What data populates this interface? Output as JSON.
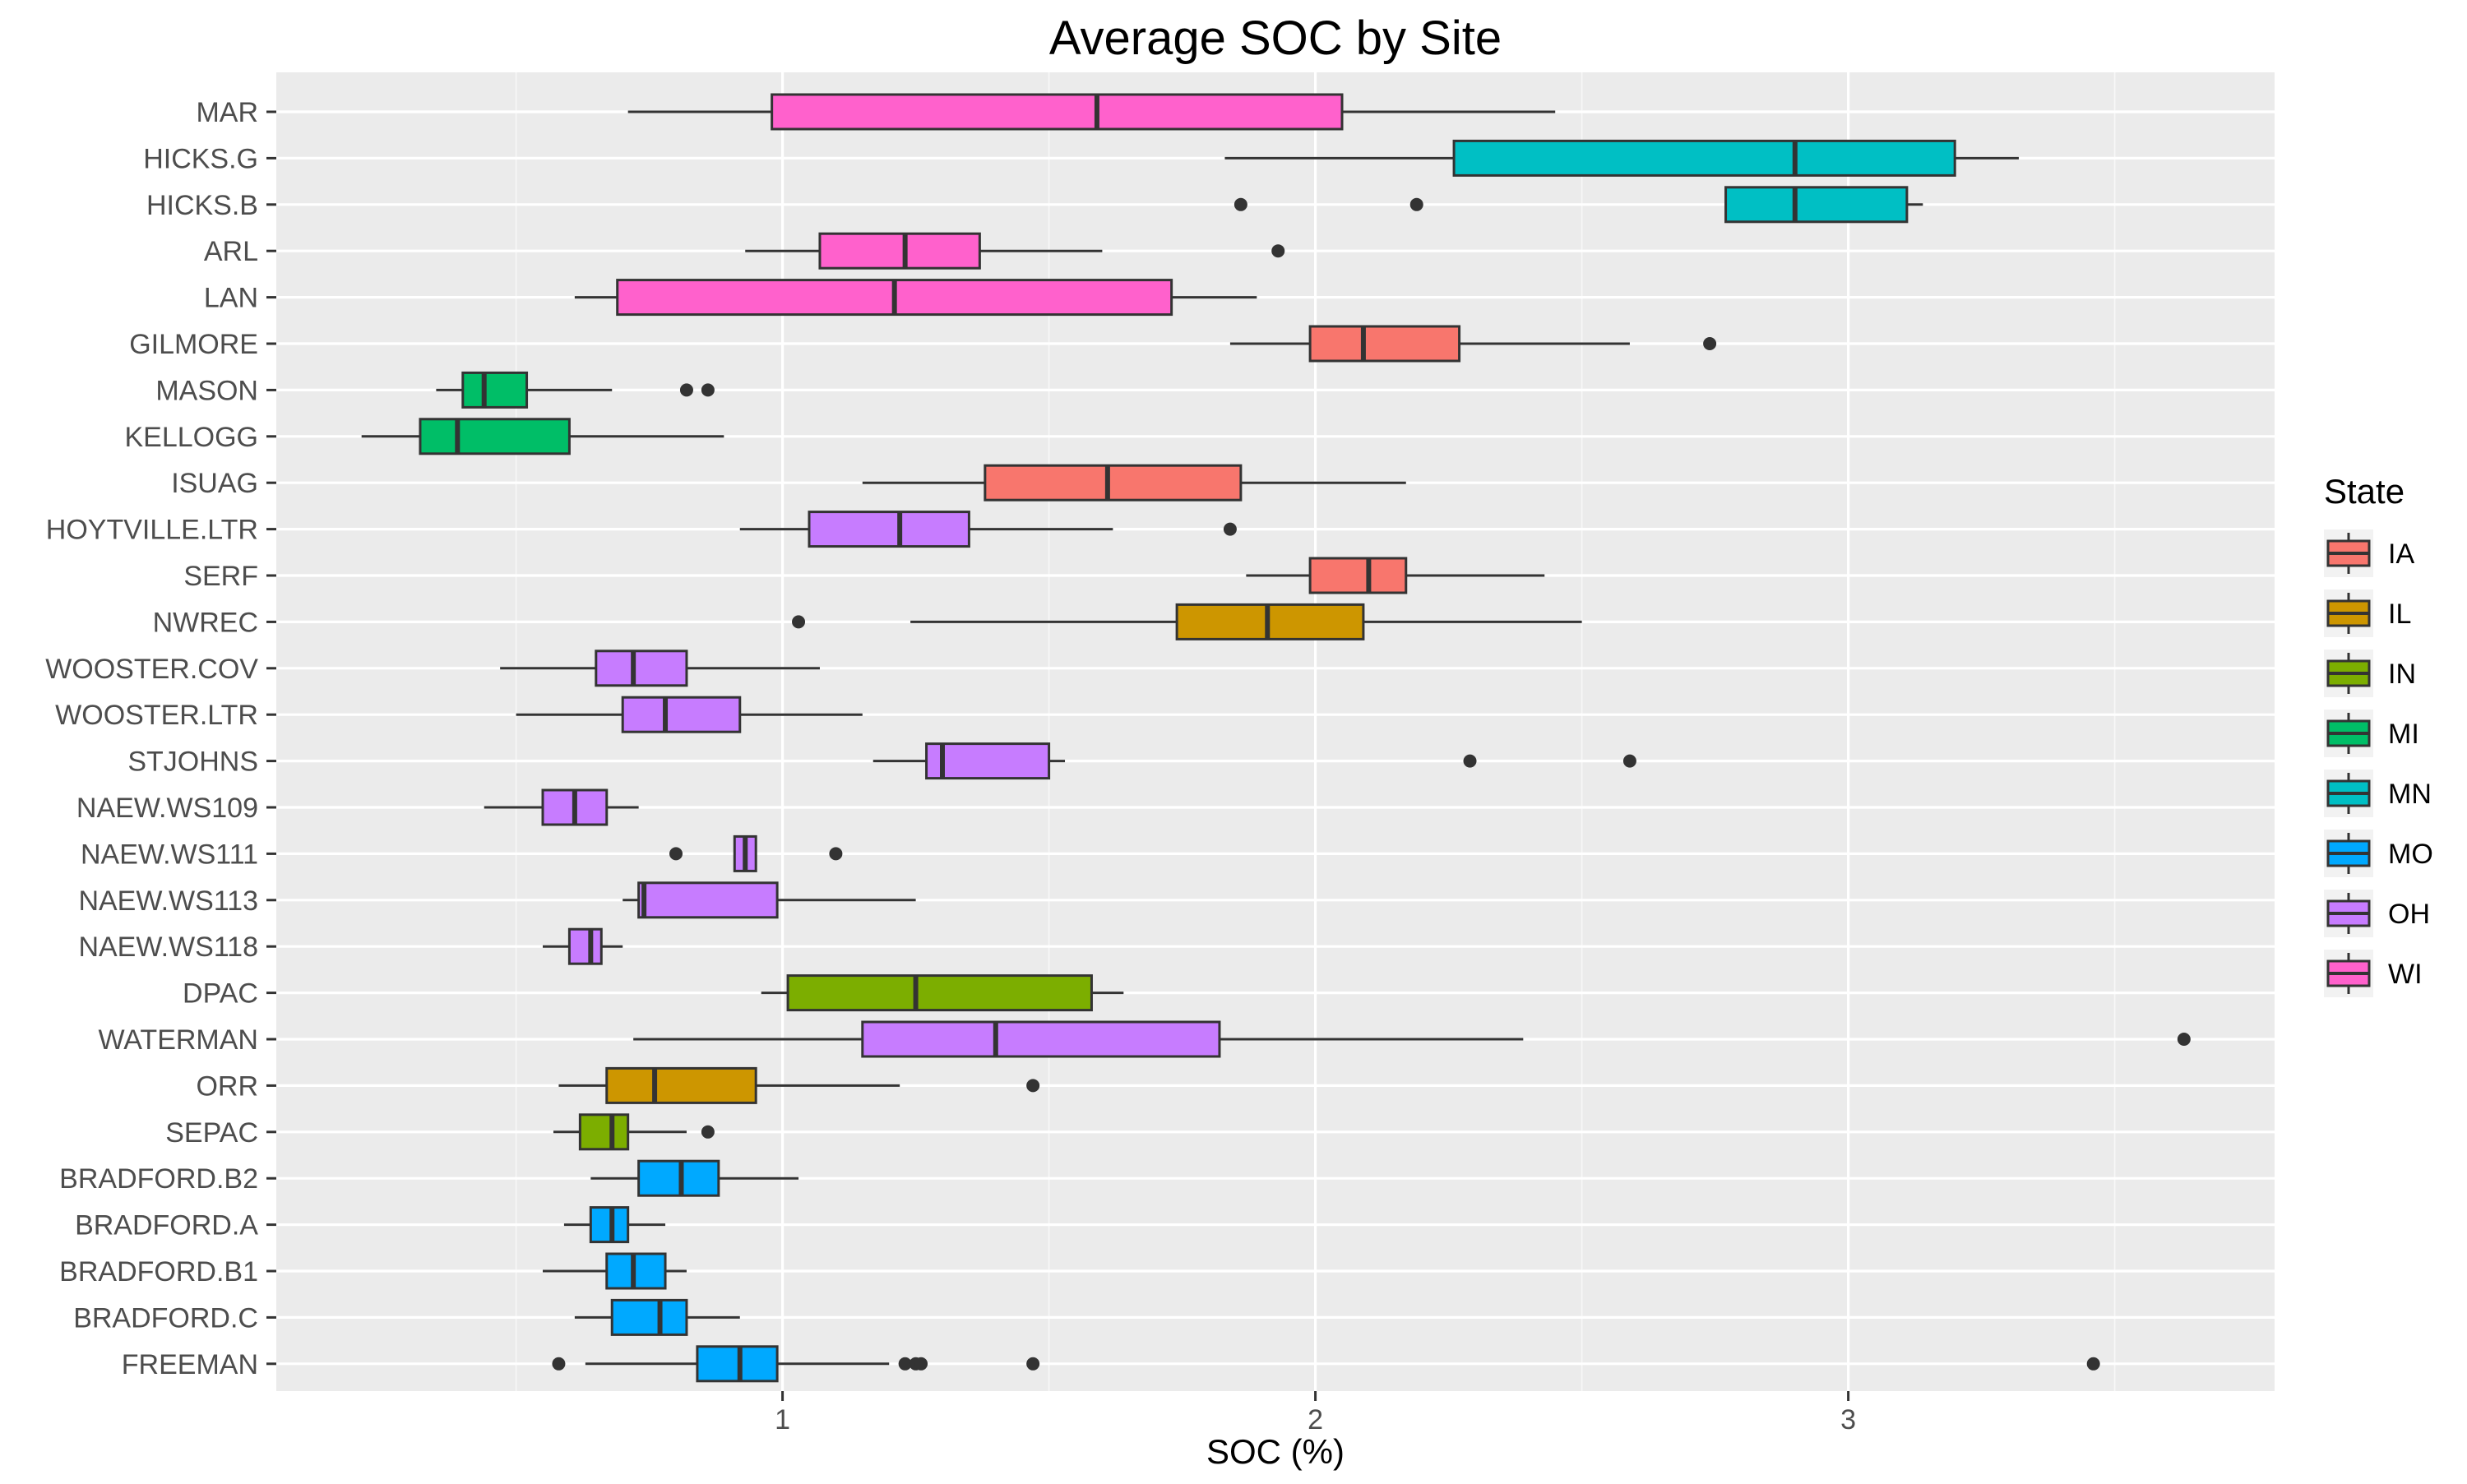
{
  "chart_data": {
    "type": "boxplot",
    "title": "Average SOC by Site",
    "xlabel": "SOC (%)",
    "ylabel": "",
    "xlim": [
      0.05,
      3.8
    ],
    "x_ticks": [
      1,
      2,
      3
    ],
    "grid": true,
    "legend": {
      "title": "State",
      "position": "right",
      "entries": [
        {
          "name": "IA",
          "color": "#F8766D"
        },
        {
          "name": "IL",
          "color": "#CD9600"
        },
        {
          "name": "IN",
          "color": "#7CAE00"
        },
        {
          "name": "MI",
          "color": "#00BE67"
        },
        {
          "name": "MN",
          "color": "#00BFC4"
        },
        {
          "name": "MO",
          "color": "#00A9FF"
        },
        {
          "name": "OH",
          "color": "#C77CFF"
        },
        {
          "name": "WI",
          "color": "#FF61CC"
        }
      ]
    },
    "categories": [
      "MAR",
      "HICKS.G",
      "HICKS.B",
      "ARL",
      "LAN",
      "GILMORE",
      "MASON",
      "KELLOGG",
      "ISUAG",
      "HOYTVILLE.LTR",
      "SERF",
      "NWREC",
      "WOOSTER.COV",
      "WOOSTER.LTR",
      "STJOHNS",
      "NAEW.WS109",
      "NAEW.WS111",
      "NAEW.WS113",
      "NAEW.WS118",
      "DPAC",
      "WATERMAN",
      "ORR",
      "SEPAC",
      "BRADFORD.B2",
      "BRADFORD.A",
      "BRADFORD.B1",
      "BRADFORD.C",
      "FREEMAN"
    ],
    "boxes": [
      {
        "site": "MAR",
        "state": "WI",
        "whisker_low": 0.71,
        "q1": 0.98,
        "median": 1.59,
        "q3": 2.05,
        "whisker_high": 2.45,
        "outliers": []
      },
      {
        "site": "HICKS.G",
        "state": "MN",
        "whisker_low": 1.83,
        "q1": 2.26,
        "median": 2.9,
        "q3": 3.2,
        "whisker_high": 3.32,
        "outliers": []
      },
      {
        "site": "HICKS.B",
        "state": "MN",
        "whisker_low": 2.77,
        "q1": 2.77,
        "median": 2.9,
        "q3": 3.11,
        "whisker_high": 3.14,
        "outliers": [
          1.86,
          2.19
        ]
      },
      {
        "site": "ARL",
        "state": "WI",
        "whisker_low": 0.93,
        "q1": 1.07,
        "median": 1.23,
        "q3": 1.37,
        "whisker_high": 1.6,
        "outliers": [
          1.93
        ]
      },
      {
        "site": "LAN",
        "state": "WI",
        "whisker_low": 0.61,
        "q1": 0.69,
        "median": 1.21,
        "q3": 1.73,
        "whisker_high": 1.89,
        "outliers": []
      },
      {
        "site": "GILMORE",
        "state": "IA",
        "whisker_low": 1.84,
        "q1": 1.99,
        "median": 2.09,
        "q3": 2.27,
        "whisker_high": 2.59,
        "outliers": [
          2.74
        ]
      },
      {
        "site": "MASON",
        "state": "MI",
        "whisker_low": 0.35,
        "q1": 0.4,
        "median": 0.44,
        "q3": 0.52,
        "whisker_high": 0.68,
        "outliers": [
          0.82,
          0.86
        ]
      },
      {
        "site": "KELLOGG",
        "state": "MI",
        "whisker_low": 0.21,
        "q1": 0.32,
        "median": 0.39,
        "q3": 0.6,
        "whisker_high": 0.89,
        "outliers": []
      },
      {
        "site": "ISUAG",
        "state": "IA",
        "whisker_low": 1.15,
        "q1": 1.38,
        "median": 1.61,
        "q3": 1.86,
        "whisker_high": 2.17,
        "outliers": []
      },
      {
        "site": "HOYTVILLE.LTR",
        "state": "OH",
        "whisker_low": 0.92,
        "q1": 1.05,
        "median": 1.22,
        "q3": 1.35,
        "whisker_high": 1.62,
        "outliers": [
          1.84
        ]
      },
      {
        "site": "SERF",
        "state": "IA",
        "whisker_low": 1.87,
        "q1": 1.99,
        "median": 2.1,
        "q3": 2.17,
        "whisker_high": 2.43,
        "outliers": []
      },
      {
        "site": "NWREC",
        "state": "IL",
        "whisker_low": 1.24,
        "q1": 1.74,
        "median": 1.91,
        "q3": 2.09,
        "whisker_high": 2.5,
        "outliers": [
          1.03
        ]
      },
      {
        "site": "WOOSTER.COV",
        "state": "OH",
        "whisker_low": 0.47,
        "q1": 0.65,
        "median": 0.72,
        "q3": 0.82,
        "whisker_high": 1.07,
        "outliers": []
      },
      {
        "site": "WOOSTER.LTR",
        "state": "OH",
        "whisker_low": 0.5,
        "q1": 0.7,
        "median": 0.78,
        "q3": 0.92,
        "whisker_high": 1.15,
        "outliers": []
      },
      {
        "site": "STJOHNS",
        "state": "OH",
        "whisker_low": 1.17,
        "q1": 1.27,
        "median": 1.3,
        "q3": 1.5,
        "whisker_high": 1.53,
        "outliers": [
          2.29,
          2.59
        ]
      },
      {
        "site": "NAEW.WS109",
        "state": "OH",
        "whisker_low": 0.44,
        "q1": 0.55,
        "median": 0.61,
        "q3": 0.67,
        "whisker_high": 0.73,
        "outliers": []
      },
      {
        "site": "NAEW.WS111",
        "state": "OH",
        "whisker_low": 0.91,
        "q1": 0.91,
        "median": 0.93,
        "q3": 0.95,
        "whisker_high": 0.95,
        "outliers": [
          0.8,
          1.1
        ]
      },
      {
        "site": "NAEW.WS113",
        "state": "OH",
        "whisker_low": 0.7,
        "q1": 0.73,
        "median": 0.74,
        "q3": 0.99,
        "whisker_high": 1.25,
        "outliers": []
      },
      {
        "site": "NAEW.WS118",
        "state": "OH",
        "whisker_low": 0.55,
        "q1": 0.6,
        "median": 0.64,
        "q3": 0.66,
        "whisker_high": 0.7,
        "outliers": []
      },
      {
        "site": "DPAC",
        "state": "IN",
        "whisker_low": 0.96,
        "q1": 1.01,
        "median": 1.25,
        "q3": 1.58,
        "whisker_high": 1.64,
        "outliers": []
      },
      {
        "site": "WATERMAN",
        "state": "OH",
        "whisker_low": 0.72,
        "q1": 1.15,
        "median": 1.4,
        "q3": 1.82,
        "whisker_high": 2.39,
        "outliers": [
          3.63
        ]
      },
      {
        "site": "ORR",
        "state": "IL",
        "whisker_low": 0.58,
        "q1": 0.67,
        "median": 0.76,
        "q3": 0.95,
        "whisker_high": 1.22,
        "outliers": [
          1.47
        ]
      },
      {
        "site": "SEPAC",
        "state": "IN",
        "whisker_low": 0.57,
        "q1": 0.62,
        "median": 0.68,
        "q3": 0.71,
        "whisker_high": 0.82,
        "outliers": [
          0.86
        ]
      },
      {
        "site": "BRADFORD.B2",
        "state": "MO",
        "whisker_low": 0.64,
        "q1": 0.73,
        "median": 0.81,
        "q3": 0.88,
        "whisker_high": 1.03,
        "outliers": []
      },
      {
        "site": "BRADFORD.A",
        "state": "MO",
        "whisker_low": 0.59,
        "q1": 0.64,
        "median": 0.68,
        "q3": 0.71,
        "whisker_high": 0.78,
        "outliers": []
      },
      {
        "site": "BRADFORD.B1",
        "state": "MO",
        "whisker_low": 0.55,
        "q1": 0.67,
        "median": 0.72,
        "q3": 0.78,
        "whisker_high": 0.82,
        "outliers": []
      },
      {
        "site": "BRADFORD.C",
        "state": "MO",
        "whisker_low": 0.61,
        "q1": 0.68,
        "median": 0.77,
        "q3": 0.82,
        "whisker_high": 0.92,
        "outliers": []
      },
      {
        "site": "FREEMAN",
        "state": "MO",
        "whisker_low": 0.63,
        "q1": 0.84,
        "median": 0.92,
        "q3": 0.99,
        "whisker_high": 1.2,
        "outliers": [
          0.58,
          1.23,
          1.25,
          1.26,
          1.47,
          3.46
        ]
      }
    ]
  }
}
